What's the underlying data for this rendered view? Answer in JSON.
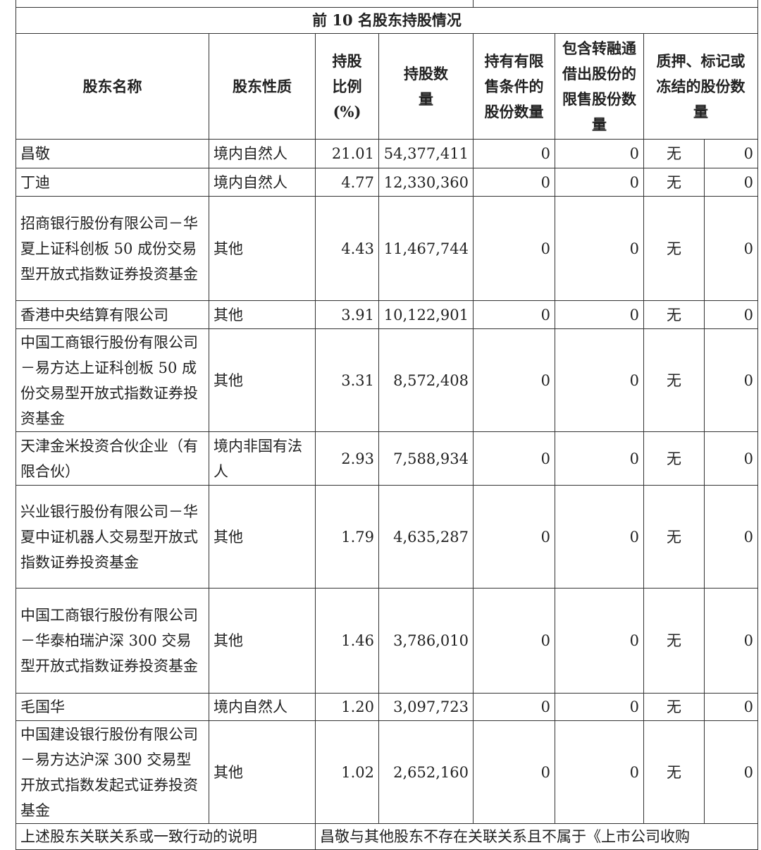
{
  "title": "前 10 名股东持股情况",
  "headers": [
    "股东名称",
    "股东性质",
    "持股比例(%)",
    "持股数量",
    "持有有限售条件的股份数量",
    "包含转融通借出股份的限售股份数量",
    "质押、标记或冻结的股份数量"
  ],
  "rows": [
    {
      "name": "昌敬",
      "type": "境内自然人",
      "pct": "21.01",
      "qty": "54,377,411",
      "restricted": "0",
      "lent": "0",
      "status": "无",
      "pledged": "0"
    },
    {
      "name": "丁迪",
      "type": "境内自然人",
      "pct": "4.77",
      "qty": "12,330,360",
      "restricted": "0",
      "lent": "0",
      "status": "无",
      "pledged": "0"
    },
    {
      "name": "招商银行股份有限公司－华夏上证科创板 50 成份交易型开放式指数证券投资基金",
      "type": "其他",
      "pct": "4.43",
      "qty": "11,467,744",
      "restricted": "0",
      "lent": "0",
      "status": "无",
      "pledged": "0"
    },
    {
      "name": "香港中央结算有限公司",
      "type": "其他",
      "pct": "3.91",
      "qty": "10,122,901",
      "restricted": "0",
      "lent": "0",
      "status": "无",
      "pledged": "0"
    },
    {
      "name": "中国工商银行股份有限公司－易方达上证科创板 50 成份交易型开放式指数证券投资基金",
      "type": "其他",
      "pct": "3.31",
      "qty": "8,572,408",
      "restricted": "0",
      "lent": "0",
      "status": "无",
      "pledged": "0"
    },
    {
      "name": "天津金米投资合伙企业（有限合伙）",
      "type": "境内非国有法人",
      "pct": "2.93",
      "qty": "7,588,934",
      "restricted": "0",
      "lent": "0",
      "status": "无",
      "pledged": "0"
    },
    {
      "name": "兴业银行股份有限公司－华夏中证机器人交易型开放式指数证券投资基金",
      "type": "其他",
      "pct": "1.79",
      "qty": "4,635,287",
      "restricted": "0",
      "lent": "0",
      "status": "无",
      "pledged": "0"
    },
    {
      "name": "中国工商银行股份有限公司－华泰柏瑞沪深 300 交易型开放式指数证券投资基金",
      "type": "其他",
      "pct": "1.46",
      "qty": "3,786,010",
      "restricted": "0",
      "lent": "0",
      "status": "无",
      "pledged": "0"
    },
    {
      "name": "毛国华",
      "type": "境内自然人",
      "pct": "1.20",
      "qty": "3,097,723",
      "restricted": "0",
      "lent": "0",
      "status": "无",
      "pledged": "0"
    },
    {
      "name": "中国建设银行股份有限公司－易方达沪深 300 交易型开放式指数发起式证券投资基金",
      "type": "其他",
      "pct": "1.02",
      "qty": "2,652,160",
      "restricted": "0",
      "lent": "0",
      "status": "无",
      "pledged": "0"
    }
  ],
  "footer": {
    "label": "上述股东关联关系或一致行动的说明",
    "text": "昌敬与其他股东不存在关联关系且不属于《上市公司收购"
  }
}
